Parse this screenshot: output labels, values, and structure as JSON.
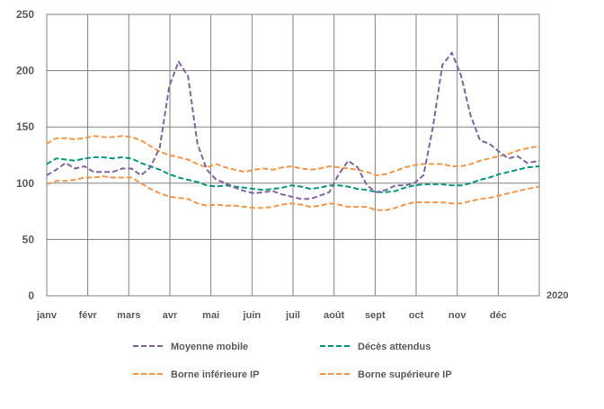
{
  "chart_data": {
    "type": "line",
    "year_label": "2020",
    "x_tick_labels": [
      "janv",
      "févr",
      "mars",
      "avr",
      "mai",
      "juin",
      "juil",
      "août",
      "sept",
      "oct",
      "nov",
      "déc"
    ],
    "y_tick_labels": [
      "0",
      "50",
      "100",
      "150",
      "200",
      "250"
    ],
    "ylim": [
      0,
      250
    ],
    "xlim": [
      0,
      366
    ],
    "grid": true,
    "legend_position": "bottom",
    "x": [
      0,
      7,
      14,
      21,
      28,
      35,
      42,
      49,
      56,
      63,
      70,
      77,
      84,
      91,
      98,
      105,
      112,
      119,
      126,
      133,
      140,
      147,
      154,
      161,
      168,
      175,
      182,
      189,
      196,
      203,
      210,
      217,
      224,
      231,
      238,
      245,
      252,
      259,
      266,
      273,
      280,
      287,
      294,
      301,
      308,
      315,
      322,
      329,
      336,
      343,
      350,
      357,
      366
    ],
    "series": [
      {
        "name": "Moyenne mobile",
        "color": "#8064A2",
        "style": "dashed",
        "values": [
          107,
          112,
          118,
          113,
          115,
          110,
          110,
          110,
          113,
          113,
          107,
          114,
          132,
          186,
          208,
          195,
          135,
          112,
          103,
          100,
          96,
          93,
          91,
          92,
          93,
          90,
          88,
          86,
          86,
          89,
          92,
          108,
          120,
          114,
          98,
          92,
          94,
          98,
          98,
          100,
          107,
          150,
          205,
          216,
          195,
          160,
          138,
          135,
          128,
          122,
          124,
          118,
          120
        ]
      },
      {
        "name": "Décès attendus",
        "color": "#009A7A",
        "style": "dashed",
        "values": [
          117,
          122,
          121,
          120,
          122,
          123,
          123,
          122,
          123,
          122,
          118,
          115,
          112,
          108,
          105,
          103,
          101,
          98,
          97,
          98,
          97,
          96,
          95,
          94,
          95,
          96,
          98,
          97,
          95,
          96,
          98,
          98,
          97,
          95,
          94,
          92,
          92,
          93,
          96,
          98,
          99,
          99,
          99,
          98,
          98,
          100,
          103,
          105,
          108,
          110,
          112,
          114,
          115
        ]
      },
      {
        "name": "Borne inférieure IP",
        "color": "#F79646",
        "style": "dashed",
        "values": [
          99,
          102,
          102,
          103,
          105,
          105,
          106,
          105,
          105,
          105,
          100,
          95,
          91,
          88,
          87,
          86,
          82,
          80,
          81,
          80,
          80,
          79,
          78,
          78,
          79,
          81,
          82,
          81,
          79,
          80,
          82,
          81,
          79,
          79,
          79,
          76,
          76,
          78,
          81,
          83,
          83,
          83,
          83,
          82,
          82,
          84,
          86,
          87,
          89,
          91,
          93,
          95,
          97
        ]
      },
      {
        "name": "Borne supérieure IP",
        "color": "#F79646",
        "style": "dashed",
        "values": [
          135,
          140,
          140,
          139,
          140,
          142,
          141,
          141,
          142,
          141,
          138,
          133,
          128,
          125,
          123,
          121,
          117,
          114,
          117,
          114,
          112,
          110,
          112,
          113,
          112,
          114,
          115,
          113,
          112,
          113,
          115,
          114,
          113,
          112,
          110,
          107,
          108,
          111,
          114,
          116,
          117,
          117,
          117,
          115,
          115,
          117,
          120,
          122,
          124,
          126,
          129,
          131,
          133
        ]
      }
    ]
  }
}
